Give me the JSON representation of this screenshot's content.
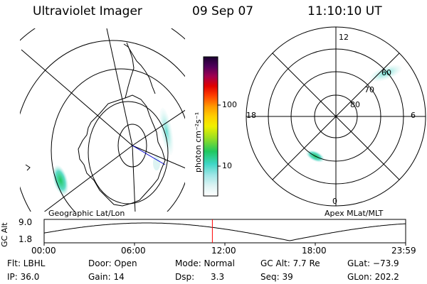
{
  "header": {
    "title": "Ultraviolet Imager",
    "date": "09 Sep 07",
    "time": "11:10:10 UT"
  },
  "colorbar": {
    "unit_label": "photon cm⁻²s⁻¹",
    "ticks": [
      "100",
      "10"
    ]
  },
  "left_panel": {
    "caption": "Geographic Lat/Lon"
  },
  "right_panel": {
    "caption": "Apex MLat/MLT",
    "mlt_labels": {
      "top": "12",
      "bottom": "0",
      "left": "18",
      "right": "6"
    },
    "lat_labels": [
      "60",
      "70",
      "80"
    ]
  },
  "altitude_plot": {
    "ylabel": "GC Alt",
    "y_ticks": [
      "9.0",
      "1.8"
    ],
    "x_ticks": [
      "00:00",
      "06:00",
      "12:00",
      "18:00",
      "23:59"
    ],
    "current_time_marker_hours": 11.17,
    "marker_color": "#ff0000"
  },
  "info": {
    "filter": "Flt: LBHL",
    "ip": "IP: 36.0",
    "door": "Door: Open",
    "gain": "Gain: 14",
    "mode": "Mode: Normal",
    "dsp_label": "Dsp:",
    "dsp_value": "3.3",
    "gc_alt": "GC Alt: 7.7 Re",
    "seq": "Seq: 39",
    "glat": "GLat: −73.9",
    "glon": "GLon: 202.2"
  }
}
